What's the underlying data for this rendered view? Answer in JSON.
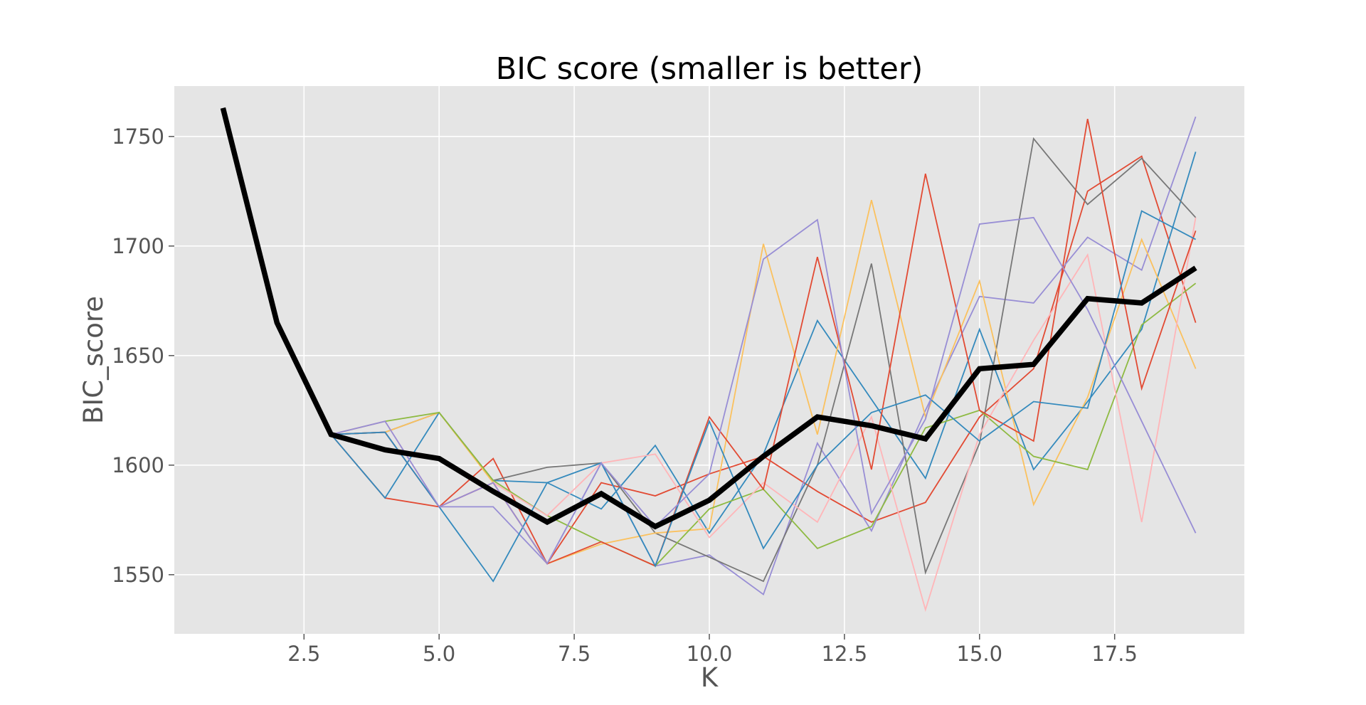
{
  "chart_data": {
    "type": "line",
    "title": "BIC score (smaller is better)",
    "xlabel": "K",
    "ylabel": "BIC_score",
    "xlim": [
      0.1,
      19.9
    ],
    "ylim": [
      1523,
      1773
    ],
    "xticks": [
      2.5,
      5.0,
      7.5,
      10.0,
      12.5,
      15.0,
      17.5
    ],
    "xtick_labels": [
      "2.5",
      "5.0",
      "7.5",
      "10.0",
      "12.5",
      "15.0",
      "17.5"
    ],
    "yticks": [
      1550,
      1600,
      1650,
      1700,
      1750
    ],
    "ytick_labels": [
      "1550",
      "1600",
      "1650",
      "1700",
      "1750"
    ],
    "grid": true,
    "background": "#e5e5e5",
    "mean": {
      "color": "#000000",
      "x": [
        1,
        2,
        3,
        4,
        5,
        6,
        7,
        8,
        9,
        10,
        11,
        12,
        13,
        14,
        15,
        16,
        17,
        18,
        19
      ],
      "y": [
        1763,
        1665,
        1614,
        1607,
        1603,
        1588,
        1574,
        1587,
        1572,
        1584,
        1604,
        1622,
        1618,
        1612,
        1644,
        1646,
        1676,
        1674,
        1690
      ]
    },
    "series": [
      {
        "color": "#E24A33",
        "x": [
          3,
          4,
          5,
          6,
          7,
          8,
          9,
          10,
          11,
          12,
          13,
          14,
          15,
          16,
          17,
          18,
          19
        ],
        "y": [
          1614,
          1585,
          1581,
          1603,
          1555,
          1592,
          1586,
          1596,
          1604,
          1588,
          1574,
          1583,
          1622,
          1644,
          1725,
          1741,
          1665
        ]
      },
      {
        "color": "#348ABD",
        "x": [
          3,
          4,
          5,
          6,
          7,
          8,
          9,
          10,
          11,
          12,
          13,
          14,
          15,
          16,
          17,
          18,
          19
        ],
        "y": [
          1614,
          1585,
          1624,
          1593,
          1592,
          1580,
          1609,
          1569,
          1605,
          1666,
          1630,
          1594,
          1662,
          1598,
          1629,
          1662,
          1743
        ]
      },
      {
        "color": "#988ED5",
        "x": [
          3,
          4,
          5,
          6,
          7,
          8,
          9,
          10,
          11,
          12,
          13,
          14,
          15,
          16,
          17,
          18,
          19
        ],
        "y": [
          1614,
          1615,
          1581,
          1581,
          1555,
          1601,
          1554,
          1559,
          1541,
          1610,
          1570,
          1625,
          1677,
          1674,
          1704,
          1689,
          1759
        ]
      },
      {
        "color": "#777777",
        "x": [
          3,
          4,
          5,
          6,
          7,
          8,
          9,
          10,
          11,
          12,
          13,
          14,
          15,
          16,
          17,
          18,
          19
        ],
        "y": [
          1614,
          1615,
          1624,
          1593,
          1599,
          1601,
          1569,
          1558,
          1547,
          1600,
          1692,
          1551,
          1610,
          1749,
          1719,
          1740,
          1713
        ]
      },
      {
        "color": "#FBC15E",
        "x": [
          3,
          4,
          5,
          6,
          7,
          8,
          9,
          10,
          11,
          12,
          13,
          14,
          15,
          16,
          17,
          18,
          19
        ],
        "y": [
          1614,
          1615,
          1624,
          1592,
          1555,
          1564,
          1569,
          1571,
          1701,
          1614,
          1721,
          1622,
          1684,
          1582,
          1631,
          1703,
          1644
        ]
      },
      {
        "color": "#8EBA42",
        "x": [
          3,
          4,
          5,
          6,
          7,
          8,
          9,
          10,
          11,
          12,
          13,
          14,
          15,
          16,
          17,
          18,
          19
        ],
        "y": [
          1614,
          1620,
          1624,
          1593,
          1577,
          1565,
          1554,
          1580,
          1589,
          1562,
          1572,
          1617,
          1625,
          1604,
          1598,
          1664,
          1683
        ]
      },
      {
        "color": "#FFB5B8",
        "x": [
          3,
          4,
          5,
          6,
          7,
          8,
          9,
          10,
          11,
          12,
          13,
          14,
          15,
          16,
          17,
          18,
          19
        ],
        "y": [
          1614,
          1620,
          1581,
          1592,
          1577,
          1601,
          1605,
          1567,
          1592,
          1574,
          1622,
          1534,
          1614,
          1657,
          1696,
          1574,
          1713
        ]
      },
      {
        "color": "#E24A33",
        "x": [
          3,
          4,
          5,
          6,
          7,
          8,
          9,
          10,
          11,
          12,
          13,
          14,
          15,
          16,
          17,
          18,
          19
        ],
        "y": [
          1614,
          1615,
          1581,
          1592,
          1555,
          1565,
          1554,
          1622,
          1589,
          1695,
          1598,
          1733,
          1625,
          1611,
          1758,
          1635,
          1707
        ]
      },
      {
        "color": "#348ABD",
        "x": [
          3,
          4,
          5,
          6,
          7,
          8,
          9,
          10,
          11,
          12,
          13,
          14,
          15,
          16,
          17,
          18,
          19
        ],
        "y": [
          1614,
          1615,
          1581,
          1547,
          1592,
          1601,
          1554,
          1620,
          1562,
          1600,
          1624,
          1632,
          1611,
          1629,
          1626,
          1716,
          1703
        ]
      },
      {
        "color": "#988ED5",
        "x": [
          3,
          4,
          5,
          6,
          7,
          8,
          9,
          10,
          11,
          12,
          13,
          14,
          15,
          16,
          17,
          18,
          19
        ],
        "y": [
          1614,
          1620,
          1581,
          1592,
          1555,
          1601,
          1572,
          1596,
          1694,
          1712,
          1578,
          1621,
          1710,
          1713,
          1671,
          1620,
          1569
        ]
      }
    ]
  }
}
